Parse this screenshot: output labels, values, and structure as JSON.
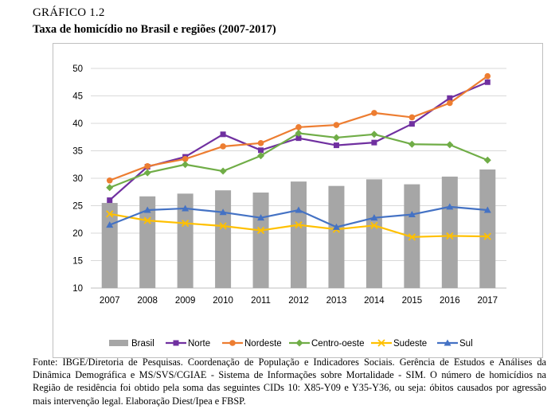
{
  "header": {
    "label": "GRÁFICO 1.2",
    "title": "Taxa de homicídio no Brasil e regiões (2007-2017)"
  },
  "chart_data": {
    "type": "bar",
    "title": "Taxa de homicídio no Brasil e regiões (2007-2017)",
    "categories": [
      "2007",
      "2008",
      "2009",
      "2010",
      "2011",
      "2012",
      "2013",
      "2014",
      "2015",
      "2016",
      "2017"
    ],
    "ylim": [
      10,
      50
    ],
    "yticks": [
      10,
      15,
      20,
      25,
      30,
      35,
      40,
      45,
      50
    ],
    "grid": true,
    "legend_position": "bottom",
    "series": [
      {
        "name": "Brasil",
        "type": "bar",
        "color": "#a6a6a6",
        "marker": "square",
        "values": [
          25.5,
          26.7,
          27.2,
          27.8,
          27.4,
          29.4,
          28.6,
          29.8,
          28.9,
          30.3,
          31.6
        ]
      },
      {
        "name": "Norte",
        "type": "line",
        "color": "#7030a0",
        "marker": "square",
        "values": [
          26.0,
          32.1,
          33.9,
          38.0,
          35.1,
          37.3,
          36.0,
          36.5,
          39.9,
          44.6,
          47.5
        ]
      },
      {
        "name": "Nordeste",
        "type": "line",
        "color": "#ed7d31",
        "marker": "circle",
        "values": [
          29.6,
          32.2,
          33.5,
          35.8,
          36.4,
          39.3,
          39.7,
          41.9,
          41.1,
          43.7,
          48.6
        ]
      },
      {
        "name": "Centro-oeste",
        "type": "line",
        "color": "#70ad47",
        "marker": "diamond",
        "values": [
          28.3,
          31.0,
          32.5,
          31.3,
          34.1,
          38.2,
          37.4,
          38.0,
          36.2,
          36.1,
          33.3
        ]
      },
      {
        "name": "Sudeste",
        "type": "line",
        "color": "#ffc000",
        "marker": "x",
        "values": [
          23.5,
          22.3,
          21.8,
          21.3,
          20.5,
          21.5,
          20.7,
          21.4,
          19.3,
          19.5,
          19.4
        ]
      },
      {
        "name": "Sul",
        "type": "line",
        "color": "#4472c4",
        "marker": "triangle",
        "values": [
          21.5,
          24.2,
          24.5,
          23.8,
          22.8,
          24.2,
          21.1,
          22.8,
          23.4,
          24.8,
          24.2
        ]
      }
    ]
  },
  "source_note": "Fonte: IBGE/Diretoria de Pesquisas. Coordenação de População e Indicadores Sociais. Gerência de Estudos e Análises da Dinâmica Demográfica e MS/SVS/CGIAE - Sistema de Informações sobre Mortalidade - SIM. O número de homicídios na Região de residência foi obtido pela soma das seguintes CIDs 10: X85-Y09 e Y35-Y36, ou seja: óbitos causados por agressão mais intervenção legal. Elaboração Diest/Ipea e FBSP."
}
